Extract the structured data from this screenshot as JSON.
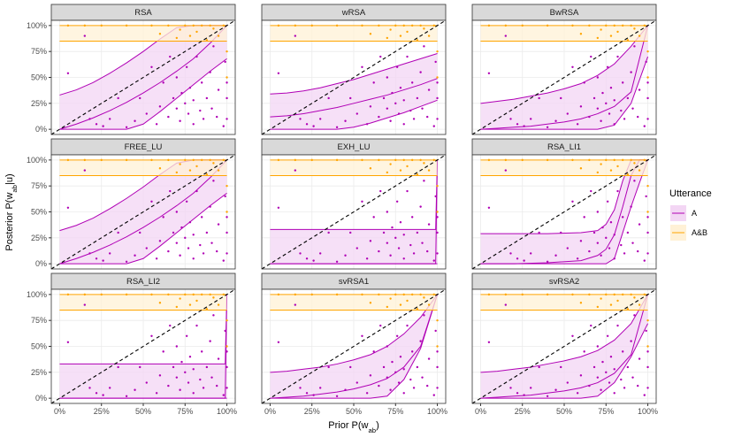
{
  "chart_data": {
    "type": "facet-ribbon",
    "x_label": [
      "Prior P(w",
      "ab",
      ")"
    ],
    "y_label": [
      "Posterior P(w",
      "ab",
      "|u)"
    ],
    "xlim": [
      -5,
      105
    ],
    "ylim": [
      -5,
      105
    ],
    "xticks": [
      {
        "value": 0,
        "label": "0%"
      },
      {
        "value": 25,
        "label": "25%"
      },
      {
        "value": 50,
        "label": "50%"
      },
      {
        "value": 75,
        "label": "75%"
      },
      {
        "value": 100,
        "label": "100%"
      }
    ],
    "yticks": [
      {
        "value": 0,
        "label": "0%"
      },
      {
        "value": 25,
        "label": "25%"
      },
      {
        "value": 50,
        "label": "50%"
      },
      {
        "value": 75,
        "label": "75%"
      },
      {
        "value": 100,
        "label": "100%"
      }
    ],
    "grid": true,
    "legend": {
      "title": "Utterance",
      "position": "right",
      "series": [
        {
          "name": "A",
          "color": "#b000b5",
          "fill": "#f3d6f4"
        },
        {
          "name": "A&B",
          "color": "#ffa500",
          "fill": "#fff1d6"
        }
      ]
    },
    "points": [
      {
        "x": [
          5,
          15,
          18,
          22,
          26,
          30,
          35,
          40,
          45,
          48,
          52,
          55,
          58,
          60,
          62,
          65,
          66,
          68,
          70,
          70,
          72,
          73,
          75,
          76,
          77,
          78,
          80,
          80,
          82,
          84,
          85,
          86,
          88,
          90,
          91,
          92,
          94,
          95,
          98,
          99,
          100,
          100,
          100
        ],
        "y": [
          54,
          90,
          10,
          5,
          3,
          10,
          30,
          2,
          8,
          30,
          15,
          60,
          5,
          22,
          45,
          12,
          70,
          30,
          20,
          50,
          8,
          35,
          25,
          60,
          15,
          40,
          5,
          28,
          70,
          18,
          45,
          10,
          30,
          55,
          20,
          80,
          12,
          38,
          3,
          65,
          10,
          30,
          45
        ]
      },
      {
        "x": [
          5,
          15,
          25,
          40,
          55,
          60,
          65,
          70,
          72,
          75,
          78,
          80,
          82,
          85,
          88,
          90,
          92,
          95,
          98,
          100,
          100
        ],
        "y": [
          100,
          100,
          100,
          100,
          100,
          92,
          100,
          88,
          96,
          100,
          90,
          100,
          94,
          100,
          86,
          100,
          97,
          90,
          100,
          75,
          50
        ]
      }
    ],
    "facets": [
      {
        "title": "RSA",
        "x": [
          0,
          10,
          20,
          30,
          40,
          50,
          60,
          70,
          80,
          90,
          100
        ],
        "series": [
          {
            "values": [
              0,
              5,
              11,
              18,
              26,
              35,
              45,
              56,
              68,
              83,
              100
            ],
            "lower": [
              0,
              0,
              0,
              0,
              0,
              5,
              17,
              30,
              43,
              56,
              68
            ],
            "upper": [
              33,
              38,
              45,
              54,
              64,
              75,
              87,
              98,
              100,
              100,
              100
            ]
          },
          {
            "values": [
              85,
              85,
              85,
              85,
              85,
              85,
              85,
              85,
              85,
              85,
              85
            ],
            "lower": [
              85,
              85,
              85,
              85,
              85,
              85,
              85,
              85,
              85,
              85,
              85
            ],
            "upper": [
              100,
              100,
              100,
              100,
              100,
              100,
              100,
              100,
              100,
              100,
              100
            ]
          }
        ]
      },
      {
        "title": "wRSA",
        "x": [
          0,
          10,
          20,
          30,
          40,
          50,
          60,
          70,
          80,
          90,
          100
        ],
        "series": [
          {
            "values": [
              12,
              13,
              15,
              18,
              21,
              25,
              29,
              33,
              38,
              43,
              49
            ],
            "lower": [
              0,
              0,
              0,
              0,
              0,
              2,
              6,
              11,
              16,
              22,
              28
            ],
            "upper": [
              34,
              35,
              37,
              40,
              44,
              48,
              53,
              58,
              63,
              68,
              73
            ]
          },
          {
            "values": [
              85,
              85,
              85,
              85,
              85,
              85,
              85,
              85,
              85,
              85,
              85
            ],
            "lower": [
              85,
              85,
              85,
              85,
              85,
              85,
              85,
              85,
              85,
              85,
              85
            ],
            "upper": [
              100,
              100,
              100,
              100,
              100,
              100,
              100,
              100,
              100,
              100,
              100
            ]
          }
        ]
      },
      {
        "title": "BwRSA",
        "x": [
          0,
          10,
          20,
          30,
          40,
          50,
          60,
          70,
          80,
          90,
          100
        ],
        "series": [
          {
            "values": [
              0,
              1,
              2,
              3,
              5,
              7,
              10,
              15,
              22,
              36,
              100
            ],
            "lower": [
              0,
              0,
              0,
              0,
              0,
              0,
              0,
              0,
              4,
              25,
              70
            ],
            "upper": [
              25,
              27,
              29,
              32,
              35,
              39,
              44,
              52,
              63,
              80,
              100
            ]
          },
          {
            "values": [
              85,
              85,
              85,
              85,
              85,
              85,
              85,
              85,
              85,
              85,
              85
            ],
            "lower": [
              85,
              85,
              85,
              85,
              85,
              85,
              85,
              85,
              85,
              85,
              85
            ],
            "upper": [
              100,
              100,
              100,
              100,
              100,
              100,
              100,
              100,
              100,
              100,
              100
            ]
          }
        ]
      },
      {
        "title": "FREE_LU",
        "x": [
          0,
          10,
          20,
          30,
          40,
          50,
          60,
          70,
          80,
          90,
          100
        ],
        "series": [
          {
            "values": [
              0,
              5,
              11,
              18,
              26,
              35,
              45,
              56,
              68,
              83,
              100
            ],
            "lower": [
              0,
              0,
              0,
              0,
              0,
              5,
              17,
              30,
              43,
              56,
              68
            ],
            "upper": [
              32,
              37,
              44,
              53,
              63,
              74,
              86,
              97,
              100,
              100,
              100
            ]
          },
          {
            "values": [
              85,
              85,
              85,
              85,
              85,
              85,
              85,
              85,
              85,
              85,
              85
            ],
            "lower": [
              85,
              85,
              85,
              85,
              85,
              85,
              85,
              85,
              85,
              85,
              85
            ],
            "upper": [
              100,
              100,
              100,
              100,
              100,
              100,
              100,
              100,
              100,
              100,
              100
            ]
          }
        ]
      },
      {
        "title": "EXH_LU",
        "x": [
          0,
          50,
          99,
          100
        ],
        "series": [
          {
            "values": [
              0,
              0,
              0,
              100
            ],
            "lower": [
              0,
              0,
              0,
              0
            ],
            "upper": [
              33,
              33,
              33,
              100
            ]
          },
          {
            "values": [
              85,
              85,
              85,
              85
            ],
            "lower": [
              85,
              85,
              85,
              85
            ],
            "upper": [
              100,
              100,
              100,
              100
            ]
          }
        ]
      },
      {
        "title": "RSA_LI1",
        "x": [
          0,
          20,
          40,
          60,
          70,
          75,
          80,
          85,
          90,
          95,
          100
        ],
        "series": [
          {
            "values": [
              0,
              0,
              1,
              3,
              8,
              14,
              28,
              55,
              85,
              100,
              100
            ],
            "lower": [
              0,
              0,
              0,
              0,
              0,
              0,
              5,
              30,
              55,
              78,
              100
            ],
            "upper": [
              29,
              29,
              29,
              30,
              32,
              38,
              52,
              80,
              100,
              100,
              100
            ]
          },
          {
            "values": [
              85,
              85,
              85,
              85,
              85,
              85,
              85,
              85,
              85,
              85,
              85
            ],
            "lower": [
              85,
              85,
              85,
              85,
              85,
              85,
              85,
              85,
              85,
              85,
              85
            ],
            "upper": [
              100,
              100,
              100,
              100,
              100,
              100,
              100,
              100,
              100,
              100,
              100
            ]
          }
        ]
      },
      {
        "title": "RSA_LI2",
        "x": [
          0,
          50,
          99,
          100
        ],
        "series": [
          {
            "values": [
              0,
              0,
              0,
              100
            ],
            "lower": [
              0,
              0,
              0,
              0
            ],
            "upper": [
              33,
              33,
              33,
              100
            ]
          },
          {
            "values": [
              85,
              85,
              85,
              85
            ],
            "lower": [
              85,
              85,
              85,
              85
            ],
            "upper": [
              100,
              100,
              100,
              100
            ]
          }
        ]
      },
      {
        "title": "svRSA1",
        "x": [
          0,
          10,
          20,
          30,
          40,
          50,
          60,
          70,
          80,
          90,
          100
        ],
        "series": [
          {
            "values": [
              0,
              1,
              2,
              4,
              6,
              9,
              13,
              19,
              30,
              50,
              100
            ],
            "lower": [
              0,
              0,
              0,
              0,
              0,
              0,
              0,
              2,
              18,
              48,
              100
            ],
            "upper": [
              25,
              26,
              28,
              30,
              33,
              37,
              42,
              50,
              62,
              78,
              100
            ]
          },
          {
            "values": [
              85,
              85,
              85,
              85,
              85,
              85,
              85,
              85,
              85,
              85,
              85
            ],
            "lower": [
              85,
              85,
              85,
              85,
              85,
              85,
              85,
              85,
              85,
              85,
              85
            ],
            "upper": [
              100,
              100,
              100,
              100,
              100,
              100,
              100,
              100,
              100,
              100,
              100
            ]
          }
        ]
      },
      {
        "title": "svRSA2",
        "x": [
          0,
          10,
          20,
          30,
          40,
          50,
          60,
          70,
          80,
          90,
          100
        ],
        "series": [
          {
            "values": [
              0,
              1,
              2,
              3,
              5,
              7,
              10,
              15,
              24,
              42,
              100
            ],
            "lower": [
              0,
              0,
              0,
              0,
              0,
              0,
              0,
              2,
              15,
              40,
              72
            ],
            "upper": [
              25,
              26,
              28,
              30,
              33,
              36,
              40,
              46,
              56,
              72,
              100
            ]
          },
          {
            "values": [
              85,
              85,
              85,
              85,
              85,
              85,
              85,
              85,
              85,
              85,
              85
            ],
            "lower": [
              85,
              85,
              85,
              85,
              85,
              85,
              85,
              85,
              85,
              85,
              85
            ],
            "upper": [
              100,
              100,
              100,
              100,
              100,
              100,
              100,
              100,
              100,
              100,
              100
            ]
          }
        ]
      }
    ]
  }
}
